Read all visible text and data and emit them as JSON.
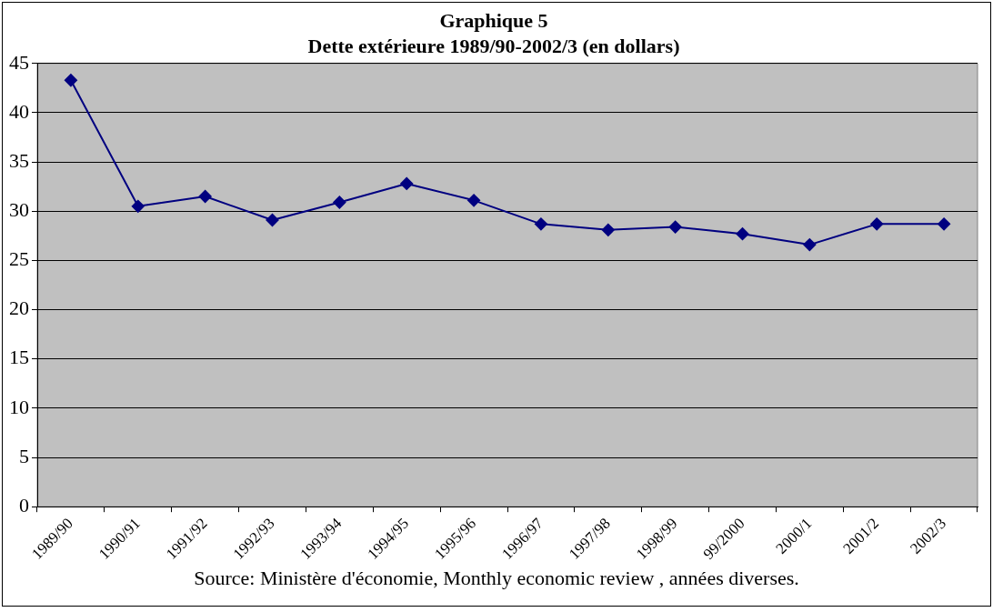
{
  "chart_data": {
    "type": "line",
    "title": "Graphique 5",
    "subtitle": "Dette extérieure 1989/90-2002/3 (en dollars)",
    "categories": [
      "1989/90",
      "1990/91",
      "1991/92",
      "1992/93",
      "1993/94",
      "1994/95",
      "1995/96",
      "1996/97",
      "1997/98",
      "1998/99",
      "99/2000",
      "2000/1",
      "2001/2",
      "2002/3"
    ],
    "series": [
      {
        "color": "#000080",
        "values": [
          43.3,
          30.5,
          31.5,
          29.1,
          30.9,
          32.8,
          31.1,
          28.7,
          28.1,
          28.4,
          27.7,
          26.6,
          28.7,
          28.7
        ]
      }
    ],
    "ylim": [
      0,
      45
    ],
    "yticks": [
      0,
      5,
      10,
      15,
      20,
      25,
      30,
      35,
      40,
      45
    ],
    "grid": "y",
    "legend": false,
    "marker": "diamond",
    "line_style": "solid",
    "annotations": [
      "Source: Ministère d'économie, Monthly economic review , années diverses."
    ]
  }
}
